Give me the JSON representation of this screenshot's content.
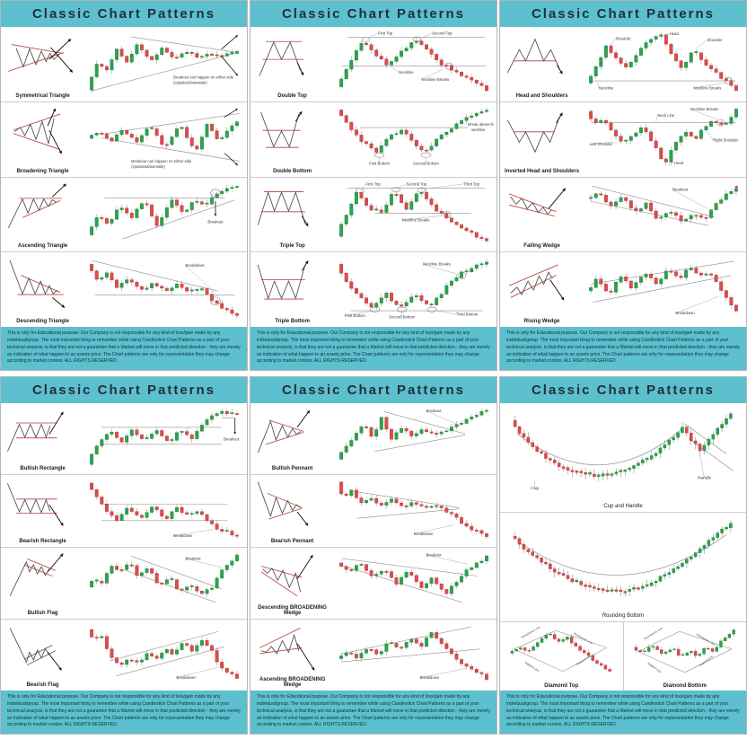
{
  "header_title": "Classic Chart Patterns",
  "footer_disclaimer": "This is only for Educational purpose. Our Company is not responsible for any kind of loss/gain made by any individual/group. The most important thing to remember while using Candlestick Chart Patterns as a part of your technical analysis, is that they are not a guarantee that a Market will move in that predicted direction - they are merely an indication of what happen to an assets price. The Chart patterns are only for representation they may change according to market contion. ALL RIGHTS RESERVED.",
  "colors": {
    "header_bg": "#5cc0ce",
    "title_text": "#22303a",
    "candle_up": "#2ca24f",
    "candle_down": "#dd4c4c",
    "trendline_red": "#bd3b3b",
    "guide_gray": "#8f8f8f"
  },
  "panels": [
    {
      "sections": [
        {
          "label": "Symmetrical Triangle",
          "annotations": [
            "Breakout can happen on either side",
            "(Upside&Downside)"
          ]
        },
        {
          "label": "Broadening Triangle",
          "annotations": [
            "Breakout can happen on either side",
            "(Upside&Downside)"
          ]
        },
        {
          "label": "Ascending Triangle",
          "annotations": [
            "Breakout"
          ]
        },
        {
          "label": "Descending Triangle",
          "annotations": [
            "Breakdown"
          ]
        }
      ]
    },
    {
      "sections": [
        {
          "label": "Double Top",
          "annotations": [
            "First Top",
            "Second Top",
            "Neckline",
            "Neckline Breaks"
          ]
        },
        {
          "label": "Double Bottom",
          "annotations": [
            "First Bottom",
            "Second Bottom",
            "Break above the",
            "neckline"
          ]
        },
        {
          "label": "Triple Top",
          "annotations": [
            "First Top",
            "Second Top",
            "Third Top",
            "Neckline Breaks"
          ]
        },
        {
          "label": "Triple Bottom",
          "annotations": [
            "First Bottom",
            "Second Bottom",
            "Third Bottom",
            "Neckline Breaks"
          ]
        }
      ]
    },
    {
      "sections": [
        {
          "label": "Head and Shoulders",
          "annotations": [
            "Shoulder",
            "Head",
            "Shoulder",
            "Neckline",
            "Neckline Breaks"
          ]
        },
        {
          "label": "Inverted Head and Shoulders",
          "annotations": [
            "Left Shoulder",
            "Head",
            "Right Shoulder",
            "Neck Line",
            "Neckline Breaks"
          ]
        },
        {
          "label": "Falling Wedge",
          "annotations": [
            "Breakout"
          ]
        },
        {
          "label": "Rising Wedge",
          "annotations": [
            "Breakdown"
          ]
        }
      ]
    },
    {
      "sections": [
        {
          "label": "Bullish Rectangle",
          "annotations": [
            "Breakout"
          ]
        },
        {
          "label": "Bearish Rectangle",
          "annotations": [
            "Breakdown"
          ]
        },
        {
          "label": "Bullish Flag",
          "annotations": [
            "Breakout"
          ]
        },
        {
          "label": "Bearish Flag",
          "annotations": [
            "Breakdown"
          ]
        }
      ]
    },
    {
      "sections": [
        {
          "label": "Bullish Pennant",
          "annotations": [
            "Breakout"
          ]
        },
        {
          "label": "Bearish Pennant",
          "annotations": [
            "Breakdown"
          ]
        },
        {
          "label": "Descending BROADENING Wedge",
          "annotations": [
            "Breakout"
          ]
        },
        {
          "label": "Ascending BROADENING Wedge",
          "annotations": [
            "Breakdown"
          ]
        }
      ]
    },
    {
      "sections": [
        {
          "label": "Cup and Handle",
          "annotations": [
            "Cup",
            "Handle"
          ]
        },
        {
          "label": "Rounding Bottom",
          "annotations": []
        },
        {
          "label": "Diamond Top",
          "annotations": [
            "Resistance Line",
            "Resistance Line",
            "Support Line",
            "Support Line"
          ]
        },
        {
          "label": "Diamond Bottom",
          "annotations": [
            "Resistance Line",
            "Resistance Line",
            "Support Line",
            "Support Line"
          ]
        }
      ]
    }
  ]
}
